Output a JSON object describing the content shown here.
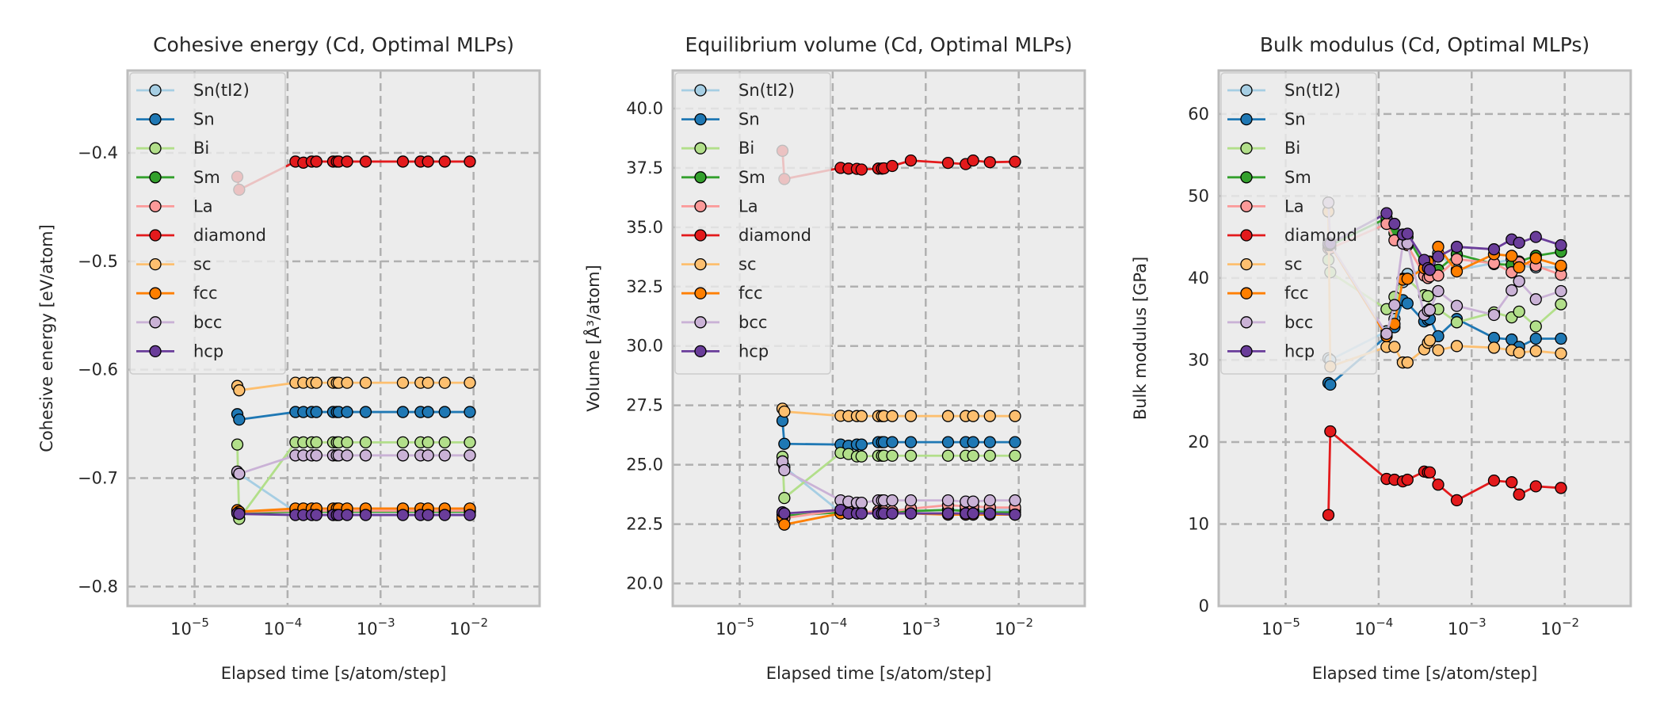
{
  "legend_order": [
    "Sn(tI2)",
    "Sn",
    "Bi",
    "Sm",
    "La",
    "diamond",
    "sc",
    "fcc",
    "bcc",
    "hcp"
  ],
  "series_colors": {
    "Sn(tI2)": "#a6cee3",
    "Sn": "#1f78b4",
    "Bi": "#b2df8a",
    "Sm": "#33a02c",
    "La": "#fb9a99",
    "diamond": "#e31a1c",
    "sc": "#fdbf6f",
    "fcc": "#ff7f00",
    "bcc": "#cab2d6",
    "hcp": "#6a3d9a"
  },
  "colors": {
    "axes_face": "#ececec",
    "axes_edge": "#bdbdbd",
    "grid": "#b0b0b0",
    "marker_edge": "#000000"
  },
  "chart_data": [
    {
      "type": "line",
      "title": "Cohesive energy (Cd, Optimal MLPs)",
      "xlabel": "Elapsed time [s/atom/step]",
      "ylabel": "Cohesive energy [eV/atom]",
      "xscale": "log",
      "xlim_log10": [
        -5.72,
        -1.29
      ],
      "ylim": [
        -0.818,
        -0.324
      ],
      "xticks": [
        {
          "exp": -5,
          "label": "10",
          "sup": "−5"
        },
        {
          "exp": -4,
          "label": "10",
          "sup": "−4"
        },
        {
          "exp": -3,
          "label": "10",
          "sup": "−3"
        },
        {
          "exp": -2,
          "label": "10",
          "sup": "−2"
        }
      ],
      "yticks": [
        {
          "v": -0.4,
          "label": "−0.4"
        },
        {
          "v": -0.5,
          "label": "−0.5"
        },
        {
          "v": -0.6,
          "label": "−0.6"
        },
        {
          "v": -0.7,
          "label": "−0.7"
        },
        {
          "v": -0.8,
          "label": "−0.8"
        }
      ],
      "grid": true,
      "legend": "upper-left",
      "x_log10": [
        -4.54,
        -4.52,
        -3.915,
        -3.83,
        -3.74,
        -3.69,
        -3.51,
        -3.47,
        -3.45,
        -3.36,
        -3.16,
        -2.76,
        -2.57,
        -2.49,
        -2.31,
        -2.04
      ],
      "series": [
        {
          "name": "Sn(tI2)",
          "values": [
            -0.695,
            -0.696,
            -0.731,
            -0.731,
            -0.731,
            -0.731,
            -0.731,
            -0.731,
            -0.731,
            -0.731,
            -0.731,
            -0.731,
            -0.731,
            -0.731,
            -0.731,
            -0.731
          ]
        },
        {
          "name": "Sn",
          "values": [
            -0.641,
            -0.646,
            -0.639,
            -0.639,
            -0.639,
            -0.639,
            -0.639,
            -0.639,
            -0.639,
            -0.639,
            -0.639,
            -0.639,
            -0.639,
            -0.639,
            -0.639,
            -0.639
          ]
        },
        {
          "name": "Bi",
          "values": [
            -0.669,
            -0.7375,
            -0.667,
            -0.667,
            -0.667,
            -0.667,
            -0.667,
            -0.667,
            -0.667,
            -0.667,
            -0.667,
            -0.667,
            -0.667,
            -0.667,
            -0.667,
            -0.667
          ]
        },
        {
          "name": "Sm",
          "values": [
            -0.731,
            -0.732,
            -0.731,
            -0.731,
            -0.731,
            -0.731,
            -0.731,
            -0.731,
            -0.731,
            -0.731,
            -0.731,
            -0.731,
            -0.731,
            -0.731,
            -0.731,
            -0.731
          ]
        },
        {
          "name": "La",
          "values": [
            -0.731,
            -0.731,
            -0.73,
            -0.73,
            -0.73,
            -0.73,
            -0.73,
            -0.73,
            -0.73,
            -0.73,
            -0.73,
            -0.73,
            -0.73,
            -0.73,
            -0.73,
            -0.73
          ]
        },
        {
          "name": "diamond",
          "values": [
            -0.422,
            -0.434,
            -0.408,
            -0.409,
            -0.408,
            -0.408,
            -0.408,
            -0.408,
            -0.408,
            -0.408,
            -0.408,
            -0.408,
            -0.408,
            -0.408,
            -0.408,
            -0.408
          ]
        },
        {
          "name": "sc",
          "values": [
            -0.615,
            -0.619,
            -0.612,
            -0.612,
            -0.612,
            -0.612,
            -0.612,
            -0.612,
            -0.612,
            -0.612,
            -0.612,
            -0.612,
            -0.612,
            -0.612,
            -0.612,
            -0.612
          ]
        },
        {
          "name": "fcc",
          "values": [
            -0.7295,
            -0.731,
            -0.728,
            -0.728,
            -0.728,
            -0.728,
            -0.728,
            -0.728,
            -0.728,
            -0.728,
            -0.728,
            -0.728,
            -0.728,
            -0.728,
            -0.728,
            -0.728
          ]
        },
        {
          "name": "bcc",
          "values": [
            -0.694,
            -0.696,
            -0.679,
            -0.679,
            -0.679,
            -0.679,
            -0.679,
            -0.679,
            -0.679,
            -0.679,
            -0.679,
            -0.679,
            -0.679,
            -0.679,
            -0.679,
            -0.679
          ]
        },
        {
          "name": "hcp",
          "values": [
            -0.7325,
            -0.733,
            -0.734,
            -0.734,
            -0.734,
            -0.734,
            -0.734,
            -0.734,
            -0.734,
            -0.734,
            -0.734,
            -0.734,
            -0.734,
            -0.734,
            -0.734,
            -0.734
          ]
        }
      ]
    },
    {
      "type": "line",
      "title": "Equilibrium volume (Cd, Optimal MLPs)",
      "xlabel": "Elapsed time [s/atom/step]",
      "ylabel": "Volume [Å³/atom]",
      "xscale": "log",
      "xlim_log10": [
        -5.72,
        -1.29
      ],
      "ylim": [
        19.05,
        41.6
      ],
      "xticks": [
        {
          "exp": -5,
          "label": "10",
          "sup": "−5"
        },
        {
          "exp": -4,
          "label": "10",
          "sup": "−4"
        },
        {
          "exp": -3,
          "label": "10",
          "sup": "−3"
        },
        {
          "exp": -2,
          "label": "10",
          "sup": "−2"
        }
      ],
      "yticks": [
        {
          "v": 20.0,
          "label": "20.0"
        },
        {
          "v": 22.5,
          "label": "22.5"
        },
        {
          "v": 25.0,
          "label": "25.0"
        },
        {
          "v": 27.5,
          "label": "27.5"
        },
        {
          "v": 30.0,
          "label": "30.0"
        },
        {
          "v": 32.5,
          "label": "32.5"
        },
        {
          "v": 35.0,
          "label": "35.0"
        },
        {
          "v": 37.5,
          "label": "37.5"
        },
        {
          "v": 40.0,
          "label": "40.0"
        }
      ],
      "grid": true,
      "legend": "upper-left",
      "x_log10": [
        -4.54,
        -4.52,
        -3.915,
        -3.83,
        -3.74,
        -3.69,
        -3.51,
        -3.47,
        -3.45,
        -3.36,
        -3.16,
        -2.76,
        -2.57,
        -2.49,
        -2.31,
        -2.04
      ],
      "series": [
        {
          "name": "Sn(tI2)",
          "values": [
            25.1,
            24.9,
            23.0,
            23.0,
            23.0,
            23.0,
            23.0,
            23.0,
            23.0,
            23.0,
            23.05,
            23.1,
            23.1,
            23.1,
            23.1,
            23.1
          ]
        },
        {
          "name": "Sn",
          "values": [
            26.85,
            25.88,
            25.85,
            25.8,
            25.85,
            25.85,
            25.95,
            25.95,
            25.95,
            25.95,
            25.95,
            25.95,
            25.95,
            25.95,
            25.95,
            25.95
          ]
        },
        {
          "name": "Bi",
          "values": [
            25.34,
            23.6,
            25.5,
            25.45,
            25.35,
            25.35,
            25.38,
            25.38,
            25.38,
            25.38,
            25.38,
            25.38,
            25.38,
            25.38,
            25.38,
            25.38
          ]
        },
        {
          "name": "Sm",
          "values": [
            22.9,
            22.85,
            23.0,
            23.0,
            23.0,
            23.0,
            23.0,
            23.0,
            23.0,
            23.0,
            23.05,
            23.1,
            23.05,
            23.05,
            23.0,
            23.0
          ]
        },
        {
          "name": "La",
          "values": [
            22.7,
            22.75,
            23.1,
            23.05,
            23.0,
            23.0,
            23.05,
            23.05,
            23.05,
            23.05,
            23.15,
            23.3,
            23.25,
            23.25,
            23.2,
            23.2
          ]
        },
        {
          "name": "diamond",
          "values": [
            38.22,
            37.03,
            37.5,
            37.47,
            37.46,
            37.43,
            37.47,
            37.47,
            37.48,
            37.58,
            37.81,
            37.71,
            37.66,
            37.81,
            37.74,
            37.76
          ]
        },
        {
          "name": "sc",
          "values": [
            27.36,
            27.24,
            27.06,
            27.05,
            27.05,
            27.05,
            27.05,
            27.05,
            27.05,
            27.05,
            27.05,
            27.05,
            27.05,
            27.05,
            27.05,
            27.05
          ]
        },
        {
          "name": "fcc",
          "values": [
            22.8,
            22.48,
            22.95,
            22.95,
            22.95,
            22.95,
            22.95,
            22.95,
            22.95,
            22.95,
            22.95,
            22.9,
            22.9,
            22.9,
            22.9,
            22.9
          ]
        },
        {
          "name": "bcc",
          "values": [
            25.14,
            24.77,
            23.5,
            23.45,
            23.4,
            23.4,
            23.5,
            23.5,
            23.5,
            23.5,
            23.5,
            23.5,
            23.45,
            23.45,
            23.5,
            23.5
          ]
        },
        {
          "name": "hcp",
          "values": [
            23.0,
            22.95,
            23.1,
            22.95,
            22.95,
            22.95,
            22.95,
            22.95,
            22.95,
            22.95,
            22.95,
            22.95,
            22.95,
            22.95,
            22.95,
            22.9
          ]
        }
      ]
    },
    {
      "type": "line",
      "title": "Bulk modulus (Cd, Optimal MLPs)",
      "xlabel": "Elapsed time [s/atom/step]",
      "ylabel": "Bulk modulus [GPa]",
      "xscale": "log",
      "xlim_log10": [
        -5.72,
        -1.29
      ],
      "ylim": [
        0,
        65.3
      ],
      "xticks": [
        {
          "exp": -5,
          "label": "10",
          "sup": "−5"
        },
        {
          "exp": -4,
          "label": "10",
          "sup": "−4"
        },
        {
          "exp": -3,
          "label": "10",
          "sup": "−3"
        },
        {
          "exp": -2,
          "label": "10",
          "sup": "−2"
        }
      ],
      "yticks": [
        {
          "v": 0,
          "label": "0"
        },
        {
          "v": 10,
          "label": "10"
        },
        {
          "v": 20,
          "label": "20"
        },
        {
          "v": 30,
          "label": "30"
        },
        {
          "v": 40,
          "label": "40"
        },
        {
          "v": 50,
          "label": "50"
        },
        {
          "v": 60,
          "label": "60"
        }
      ],
      "grid": true,
      "legend": "upper-left",
      "x_log10": [
        -4.54,
        -4.52,
        -3.915,
        -3.83,
        -3.74,
        -3.69,
        -3.51,
        -3.47,
        -3.45,
        -3.36,
        -3.16,
        -2.76,
        -2.57,
        -2.49,
        -2.31,
        -2.04
      ],
      "series": [
        {
          "name": "Sn(tI2)",
          "values": [
            30.2,
            30.0,
            33.5,
            35.0,
            39.5,
            40.5,
            41.0,
            41.5,
            42.0,
            43.0,
            41.0,
            41.8,
            42.3,
            41.5,
            41.3,
            41.3
          ]
        },
        {
          "name": "Sn",
          "values": [
            27.2,
            27.0,
            32.9,
            34.0,
            37.3,
            36.9,
            34.7,
            34.9,
            35.0,
            32.9,
            35.0,
            32.7,
            32.5,
            31.6,
            32.6,
            32.6
          ]
        },
        {
          "name": "Bi",
          "values": [
            42.2,
            40.7,
            36.2,
            37.7,
            39.9,
            39.9,
            37.9,
            37.8,
            36.2,
            36.2,
            34.6,
            35.8,
            35.2,
            35.9,
            34.1,
            36.8
          ]
        },
        {
          "name": "Sm",
          "values": [
            44.0,
            44.0,
            47.3,
            45.5,
            45.0,
            45.0,
            41.5,
            41.2,
            41.2,
            41.0,
            42.9,
            41.7,
            41.6,
            42.0,
            42.7,
            43.2
          ]
        },
        {
          "name": "La",
          "values": [
            43.6,
            43.6,
            46.6,
            44.6,
            44.3,
            44.0,
            40.3,
            40.0,
            40.2,
            40.3,
            42.3,
            41.8,
            40.7,
            41.9,
            41.5,
            40.4
          ]
        },
        {
          "name": "diamond",
          "values": [
            11.1,
            21.3,
            15.5,
            15.4,
            15.2,
            15.4,
            16.4,
            16.3,
            16.3,
            14.8,
            12.9,
            15.3,
            15.1,
            13.6,
            14.6,
            14.4
          ]
        },
        {
          "name": "sc",
          "values": [
            48.1,
            29.2,
            31.6,
            31.6,
            29.7,
            29.7,
            31.3,
            32.1,
            32.4,
            31.2,
            31.7,
            31.5,
            31.2,
            30.9,
            31.1,
            30.8
          ]
        },
        {
          "name": "fcc",
          "values": [
            44.0,
            44.0,
            32.9,
            34.4,
            39.8,
            39.9,
            41.2,
            42.0,
            41.0,
            43.8,
            40.8,
            42.9,
            42.7,
            41.3,
            42.4,
            41.5
          ]
        },
        {
          "name": "bcc",
          "values": [
            49.2,
            44.1,
            33.2,
            36.7,
            44.2,
            44.2,
            35.5,
            36.0,
            36.1,
            38.4,
            36.6,
            35.5,
            38.5,
            39.6,
            37.4,
            38.4
          ]
        },
        {
          "name": "hcp",
          "values": [
            44.2,
            44.2,
            47.9,
            46.6,
            45.3,
            45.4,
            42.2,
            41.2,
            41.0,
            42.6,
            43.8,
            43.5,
            44.7,
            44.3,
            45.0,
            44.0
          ]
        }
      ]
    }
  ]
}
